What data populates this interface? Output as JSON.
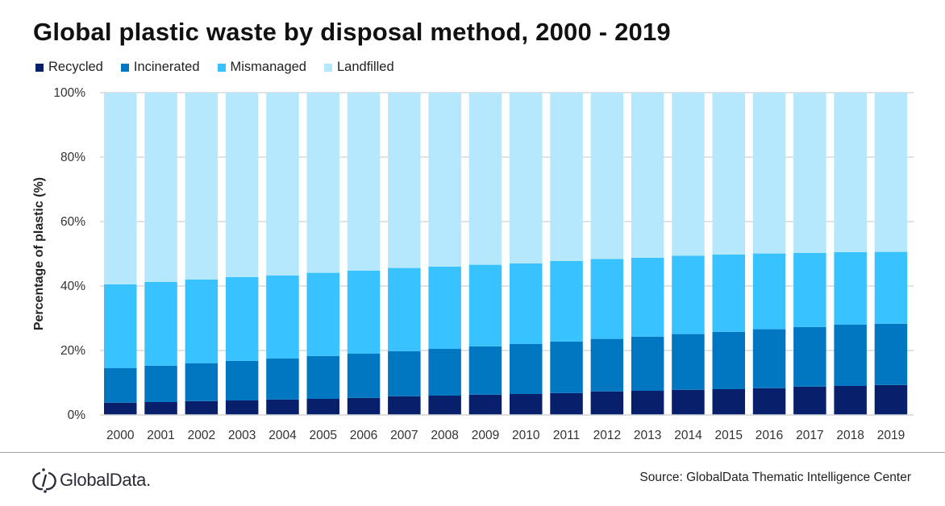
{
  "chart_data": {
    "type": "bar",
    "stacked": true,
    "title": "Global plastic waste by disposal method, 2000 - 2019",
    "ylabel": "Percentage of plastic (%)",
    "xlabel": "",
    "ylim": [
      0,
      100
    ],
    "yticks": [
      "0%",
      "20%",
      "40%",
      "60%",
      "80%",
      "100%"
    ],
    "grid": true,
    "legend_position": "top-left",
    "categories": [
      "2000",
      "2001",
      "2002",
      "2003",
      "2004",
      "2005",
      "2006",
      "2007",
      "2008",
      "2009",
      "2010",
      "2011",
      "2012",
      "2013",
      "2014",
      "2015",
      "2016",
      "2017",
      "2018",
      "2019"
    ],
    "series": [
      {
        "name": "Recycled",
        "color": "#08206B",
        "values": [
          3.8,
          4.0,
          4.3,
          4.5,
          4.8,
          5.0,
          5.3,
          5.8,
          6.0,
          6.3,
          6.5,
          6.8,
          7.3,
          7.5,
          7.8,
          8.0,
          8.3,
          8.8,
          9.0,
          9.3
        ]
      },
      {
        "name": "Incinerated",
        "color": "#0077C0",
        "values": [
          10.7,
          11.3,
          11.7,
          12.3,
          12.7,
          13.3,
          13.7,
          14.0,
          14.5,
          15.0,
          15.5,
          16.0,
          16.3,
          16.8,
          17.3,
          17.8,
          18.3,
          18.5,
          19.0,
          19.0
        ]
      },
      {
        "name": "Mismanaged",
        "color": "#38C2FF",
        "values": [
          26.0,
          26.0,
          26.0,
          26.0,
          25.8,
          25.8,
          25.8,
          25.8,
          25.5,
          25.3,
          25.0,
          25.0,
          24.8,
          24.5,
          24.3,
          24.0,
          23.5,
          23.0,
          22.5,
          22.3
        ]
      },
      {
        "name": "Landfilled",
        "color": "#B5E8FC",
        "values": [
          59.5,
          58.7,
          58.0,
          57.2,
          56.7,
          55.9,
          55.2,
          54.4,
          54.0,
          53.4,
          53.0,
          52.2,
          51.6,
          51.2,
          50.6,
          50.2,
          49.9,
          49.7,
          49.5,
          49.4
        ]
      }
    ]
  },
  "footer": {
    "logo_text": "GlobalData.",
    "source": "Source: GlobalData Thematic Intelligence Center"
  }
}
